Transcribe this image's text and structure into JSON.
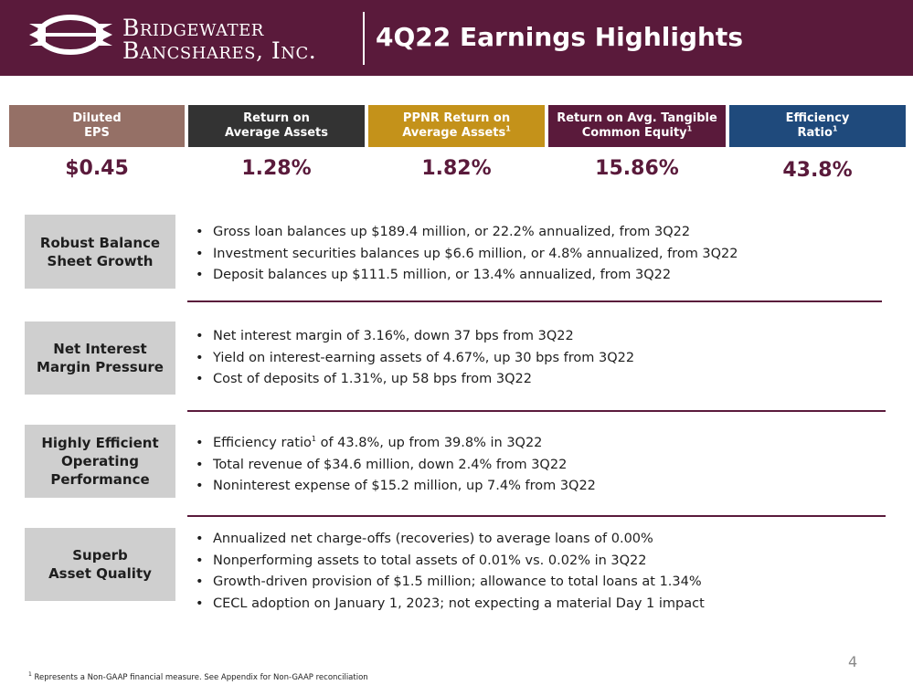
{
  "header": {
    "brand_line1": "Bridgewater",
    "brand_line2": "Bancshares, Inc.",
    "title": "4Q22 Earnings Highlights"
  },
  "kpis": [
    {
      "label_line1": "Diluted",
      "label_line2": "EPS",
      "sup": "",
      "value": "$0.45",
      "color": "#957066"
    },
    {
      "label_line1": "Return on",
      "label_line2": "Average Assets",
      "sup": "",
      "value": "1.28%",
      "color": "#333333"
    },
    {
      "label_line1": "PPNR Return on",
      "label_line2": "Average Assets",
      "sup": "1",
      "value": "1.82%",
      "color": "#c4921a"
    },
    {
      "label_line1": "Return on Avg. Tangible",
      "label_line2": "Common Equity",
      "sup": "1",
      "value": "15.86%",
      "color": "#5a1a3b"
    },
    {
      "label_line1": "Efficiency",
      "label_line2": "Ratio",
      "sup": "1",
      "value": "43.8%",
      "color": "#1f4a7c"
    }
  ],
  "sections": [
    {
      "label_line1": "Robust Balance",
      "label_line2": "Sheet Growth",
      "label_line3": "",
      "bullets": [
        "Gross loan balances up $189.4 million, or 22.2% annualized, from 3Q22",
        "Investment securities balances up $6.6 million, or 4.8% annualized, from 3Q22",
        "Deposit balances up $111.5 million, or 13.4% annualized, from 3Q22"
      ]
    },
    {
      "label_line1": "Net Interest",
      "label_line2": "Margin Pressure",
      "label_line3": "",
      "bullets": [
        "Net interest margin of 3.16%, down 37 bps from 3Q22",
        "Yield on interest-earning assets of 4.67%, up 30 bps from 3Q22",
        "Cost of deposits of 1.31%, up 58 bps from 3Q22"
      ]
    },
    {
      "label_line1": "Highly Efficient",
      "label_line2": "Operating",
      "label_line3": "Performance",
      "bullets_first_pre": "Efficiency ratio",
      "bullets_first_sup": "1",
      "bullets_first_post": " of 43.8%, up from 39.8% in 3Q22",
      "bullets": [
        "Total revenue of $34.6 million, down 2.4% from 3Q22",
        "Noninterest expense of $15.2 million, up 7.4% from 3Q22"
      ]
    },
    {
      "label_line1": "Superb",
      "label_line2": "Asset Quality",
      "label_line3": "",
      "bullets": [
        "Annualized net charge-offs (recoveries) to average loans of 0.00%",
        "Nonperforming assets to total assets of 0.01% vs. 0.02% in 3Q22",
        "Growth-driven provision of $1.5 million; allowance to total loans at 1.34%",
        "CECL adoption on January 1, 2023; not expecting a material Day 1 impact"
      ]
    }
  ],
  "footnote_sup": "1",
  "footnote": " Represents a Non-GAAP financial measure. See Appendix for Non-GAAP reconciliation",
  "page_number": "4"
}
